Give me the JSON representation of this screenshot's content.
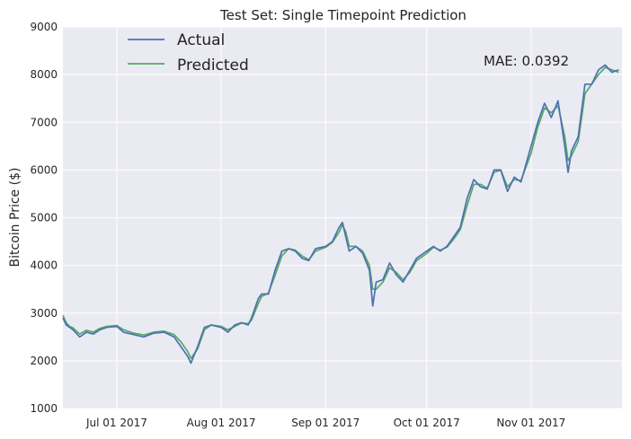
{
  "chart_data": {
    "type": "line",
    "title": "Test Set: Single Timepoint Prediction",
    "xlabel": "",
    "ylabel": "Bitcoin Price ($)",
    "xlim": [
      "2017-06-15",
      "2017-11-28"
    ],
    "ylim": [
      1000,
      9000
    ],
    "grid": true,
    "legend_position": "top-left",
    "x_ticks": [
      {
        "label": "Jul 01 2017",
        "date": "2017-07-01"
      },
      {
        "label": "Aug 01 2017",
        "date": "2017-08-01"
      },
      {
        "label": "Sep 01 2017",
        "date": "2017-09-01"
      },
      {
        "label": "Oct 01 2017",
        "date": "2017-10-01"
      },
      {
        "label": "Nov 01 2017",
        "date": "2017-11-01"
      }
    ],
    "y_ticks": [
      1000,
      2000,
      3000,
      4000,
      5000,
      6000,
      7000,
      8000,
      9000
    ],
    "annotation": "MAE: 0.0392",
    "series": [
      {
        "name": "Actual",
        "color": "#4c72b0",
        "points": [
          [
            "2017-06-15",
            2900
          ],
          [
            "2017-06-16",
            2750
          ],
          [
            "2017-06-17",
            2700
          ],
          [
            "2017-06-18",
            2650
          ],
          [
            "2017-06-20",
            2500
          ],
          [
            "2017-06-22",
            2600
          ],
          [
            "2017-06-24",
            2560
          ],
          [
            "2017-06-26",
            2650
          ],
          [
            "2017-06-28",
            2700
          ],
          [
            "2017-07-01",
            2720
          ],
          [
            "2017-07-03",
            2600
          ],
          [
            "2017-07-06",
            2550
          ],
          [
            "2017-07-09",
            2500
          ],
          [
            "2017-07-12",
            2580
          ],
          [
            "2017-07-15",
            2600
          ],
          [
            "2017-07-18",
            2500
          ],
          [
            "2017-07-20",
            2300
          ],
          [
            "2017-07-22",
            2100
          ],
          [
            "2017-07-23",
            1950
          ],
          [
            "2017-07-25",
            2300
          ],
          [
            "2017-07-27",
            2700
          ],
          [
            "2017-07-29",
            2750
          ],
          [
            "2017-08-01",
            2700
          ],
          [
            "2017-08-03",
            2600
          ],
          [
            "2017-08-05",
            2750
          ],
          [
            "2017-08-07",
            2800
          ],
          [
            "2017-08-09",
            2750
          ],
          [
            "2017-08-10",
            2900
          ],
          [
            "2017-08-12",
            3300
          ],
          [
            "2017-08-13",
            3400
          ],
          [
            "2017-08-15",
            3400
          ],
          [
            "2017-08-17",
            3900
          ],
          [
            "2017-08-19",
            4300
          ],
          [
            "2017-08-21",
            4350
          ],
          [
            "2017-08-23",
            4300
          ],
          [
            "2017-08-25",
            4150
          ],
          [
            "2017-08-27",
            4100
          ],
          [
            "2017-08-29",
            4350
          ],
          [
            "2017-09-01",
            4400
          ],
          [
            "2017-09-03",
            4500
          ],
          [
            "2017-09-05",
            4800
          ],
          [
            "2017-09-06",
            4900
          ],
          [
            "2017-09-07",
            4600
          ],
          [
            "2017-09-08",
            4300
          ],
          [
            "2017-09-10",
            4400
          ],
          [
            "2017-09-12",
            4250
          ],
          [
            "2017-09-14",
            3900
          ],
          [
            "2017-09-15",
            3150
          ],
          [
            "2017-09-16",
            3650
          ],
          [
            "2017-09-18",
            3700
          ],
          [
            "2017-09-20",
            4050
          ],
          [
            "2017-09-22",
            3800
          ],
          [
            "2017-09-24",
            3650
          ],
          [
            "2017-09-26",
            3900
          ],
          [
            "2017-09-28",
            4150
          ],
          [
            "2017-10-01",
            4300
          ],
          [
            "2017-10-03",
            4400
          ],
          [
            "2017-10-05",
            4300
          ],
          [
            "2017-10-07",
            4400
          ],
          [
            "2017-10-09",
            4600
          ],
          [
            "2017-10-11",
            4800
          ],
          [
            "2017-10-13",
            5400
          ],
          [
            "2017-10-15",
            5800
          ],
          [
            "2017-10-17",
            5650
          ],
          [
            "2017-10-19",
            5600
          ],
          [
            "2017-10-21",
            6000
          ],
          [
            "2017-10-23",
            6000
          ],
          [
            "2017-10-25",
            5550
          ],
          [
            "2017-10-27",
            5850
          ],
          [
            "2017-10-29",
            5750
          ],
          [
            "2017-11-01",
            6500
          ],
          [
            "2017-11-03",
            7000
          ],
          [
            "2017-11-05",
            7400
          ],
          [
            "2017-11-07",
            7100
          ],
          [
            "2017-11-09",
            7450
          ],
          [
            "2017-11-11",
            6500
          ],
          [
            "2017-11-12",
            5950
          ],
          [
            "2017-11-13",
            6400
          ],
          [
            "2017-11-15",
            6700
          ],
          [
            "2017-11-17",
            7800
          ],
          [
            "2017-11-19",
            7800
          ],
          [
            "2017-11-21",
            8100
          ],
          [
            "2017-11-23",
            8200
          ],
          [
            "2017-11-25",
            8050
          ],
          [
            "2017-11-27",
            8100
          ]
        ]
      },
      {
        "name": "Predicted",
        "color": "#55a868",
        "points": [
          [
            "2017-06-15",
            2950
          ],
          [
            "2017-06-16",
            2800
          ],
          [
            "2017-06-17",
            2720
          ],
          [
            "2017-06-18",
            2690
          ],
          [
            "2017-06-20",
            2560
          ],
          [
            "2017-06-22",
            2640
          ],
          [
            "2017-06-24",
            2600
          ],
          [
            "2017-06-26",
            2680
          ],
          [
            "2017-06-28",
            2720
          ],
          [
            "2017-07-01",
            2740
          ],
          [
            "2017-07-03",
            2650
          ],
          [
            "2017-07-06",
            2580
          ],
          [
            "2017-07-09",
            2540
          ],
          [
            "2017-07-12",
            2600
          ],
          [
            "2017-07-15",
            2620
          ],
          [
            "2017-07-18",
            2550
          ],
          [
            "2017-07-20",
            2400
          ],
          [
            "2017-07-22",
            2200
          ],
          [
            "2017-07-23",
            2050
          ],
          [
            "2017-07-25",
            2250
          ],
          [
            "2017-07-27",
            2650
          ],
          [
            "2017-07-29",
            2750
          ],
          [
            "2017-08-01",
            2720
          ],
          [
            "2017-08-03",
            2650
          ],
          [
            "2017-08-05",
            2720
          ],
          [
            "2017-08-07",
            2790
          ],
          [
            "2017-08-09",
            2780
          ],
          [
            "2017-08-10",
            2850
          ],
          [
            "2017-08-12",
            3200
          ],
          [
            "2017-08-13",
            3350
          ],
          [
            "2017-08-15",
            3420
          ],
          [
            "2017-08-17",
            3800
          ],
          [
            "2017-08-19",
            4200
          ],
          [
            "2017-08-21",
            4350
          ],
          [
            "2017-08-23",
            4320
          ],
          [
            "2017-08-25",
            4200
          ],
          [
            "2017-08-27",
            4120
          ],
          [
            "2017-08-29",
            4300
          ],
          [
            "2017-09-01",
            4380
          ],
          [
            "2017-09-03",
            4480
          ],
          [
            "2017-09-05",
            4700
          ],
          [
            "2017-09-06",
            4850
          ],
          [
            "2017-09-07",
            4700
          ],
          [
            "2017-09-08",
            4400
          ],
          [
            "2017-09-10",
            4400
          ],
          [
            "2017-09-12",
            4300
          ],
          [
            "2017-09-14",
            4000
          ],
          [
            "2017-09-15",
            3500
          ],
          [
            "2017-09-16",
            3500
          ],
          [
            "2017-09-18",
            3650
          ],
          [
            "2017-09-20",
            3950
          ],
          [
            "2017-09-22",
            3850
          ],
          [
            "2017-09-24",
            3700
          ],
          [
            "2017-09-26",
            3850
          ],
          [
            "2017-09-28",
            4100
          ],
          [
            "2017-10-01",
            4250
          ],
          [
            "2017-10-03",
            4380
          ],
          [
            "2017-10-05",
            4320
          ],
          [
            "2017-10-07",
            4380
          ],
          [
            "2017-10-09",
            4550
          ],
          [
            "2017-10-11",
            4750
          ],
          [
            "2017-10-13",
            5250
          ],
          [
            "2017-10-15",
            5700
          ],
          [
            "2017-10-17",
            5700
          ],
          [
            "2017-10-19",
            5620
          ],
          [
            "2017-10-21",
            5950
          ],
          [
            "2017-10-23",
            6000
          ],
          [
            "2017-10-25",
            5650
          ],
          [
            "2017-10-27",
            5800
          ],
          [
            "2017-10-29",
            5780
          ],
          [
            "2017-11-01",
            6350
          ],
          [
            "2017-11-03",
            6900
          ],
          [
            "2017-11-05",
            7300
          ],
          [
            "2017-11-07",
            7200
          ],
          [
            "2017-11-09",
            7350
          ],
          [
            "2017-11-11",
            6700
          ],
          [
            "2017-11-12",
            6200
          ],
          [
            "2017-11-13",
            6300
          ],
          [
            "2017-11-15",
            6600
          ],
          [
            "2017-11-17",
            7600
          ],
          [
            "2017-11-19",
            7800
          ],
          [
            "2017-11-21",
            8000
          ],
          [
            "2017-11-23",
            8150
          ],
          [
            "2017-11-25",
            8100
          ],
          [
            "2017-11-27",
            8050
          ]
        ]
      }
    ]
  }
}
